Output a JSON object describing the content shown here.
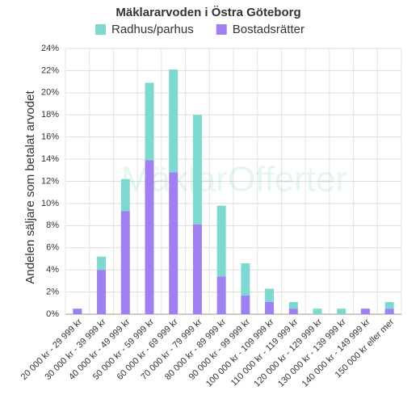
{
  "chart_data": {
    "type": "stacked_bar",
    "title": "Mäklararvoden i Östra Göteborg",
    "y_label": "Andelen säljare som betalat arvodet",
    "watermark": "MäklarOfferter",
    "categories": [
      "20 000 kr - 29 999 kr",
      "30 000 kr - 39 999 kr",
      "40 000 kr - 49 999 kr",
      "50 000 kr - 59 999 kr",
      "60 000 kr - 69 999 kr",
      "70 000 kr - 79 999 kr",
      "80 000 kr - 89 999 kr",
      "90 000 kr - 99 999 kr",
      "100 000 kr - 109 999 kr",
      "110 000 kr - 119 999 kr",
      "120 000 kr - 129 999 kr",
      "130 000 kr - 139 999 kr",
      "140 000 kr - 149 999 kr",
      "150 000 kr eller mer"
    ],
    "series": [
      {
        "name": "Bostadsrätter",
        "color": "#a07ff0",
        "values": [
          0.5,
          4.0,
          9.3,
          13.9,
          12.8,
          8.1,
          3.4,
          1.7,
          1.1,
          0.5,
          0,
          0,
          0.5,
          0.5
        ]
      },
      {
        "name": "Radhus/parhus",
        "color": "#7dd9cf",
        "values": [
          0,
          1.2,
          2.9,
          7.0,
          9.3,
          9.9,
          6.4,
          2.9,
          1.2,
          0.6,
          0.5,
          0.5,
          0,
          0.6
        ]
      }
    ],
    "legend_order": [
      1,
      0
    ],
    "ylim": [
      0,
      24
    ],
    "yticks": [
      {
        "value": 0,
        "label": "0%"
      },
      {
        "value": 2,
        "label": "2%"
      },
      {
        "value": 4,
        "label": "4%"
      },
      {
        "value": 6,
        "label": "6%"
      },
      {
        "value": 8,
        "label": "8%"
      },
      {
        "value": 10,
        "label": "10%"
      },
      {
        "value": 12,
        "label": "12%"
      },
      {
        "value": 14,
        "label": "14%"
      },
      {
        "value": 16,
        "label": "16%"
      },
      {
        "value": 18,
        "label": "18%"
      },
      {
        "value": 20,
        "label": "20%"
      },
      {
        "value": 22,
        "label": "22%"
      },
      {
        "value": 24,
        "label": "24%"
      }
    ],
    "grid": true
  }
}
